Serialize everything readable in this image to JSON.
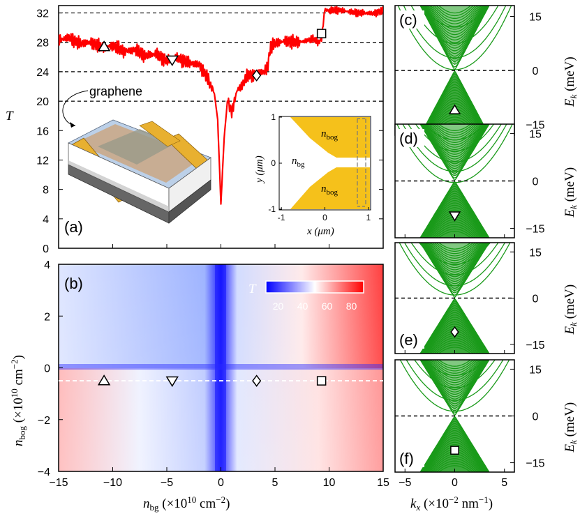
{
  "chart_data": [
    {
      "panel": "(a)",
      "type": "line",
      "ylabel": "T",
      "xlim": [
        -15,
        15
      ],
      "ylim": [
        0,
        33
      ],
      "yticks": [
        "0",
        "4",
        "8",
        "12",
        "16",
        "20",
        "24",
        "28",
        "32"
      ],
      "plateaus": [
        20,
        24,
        28,
        32
      ],
      "series": [
        {
          "name": "T",
          "color": "#ff0000",
          "x": [
            -15,
            -14,
            -13,
            -12,
            -11,
            -10,
            -9,
            -8,
            -7,
            -6,
            -5,
            -4,
            -3,
            -2,
            -1.2,
            -0.6,
            -0.3,
            0,
            0.3,
            0.6,
            1,
            1.5,
            2,
            2.5,
            3,
            3.5,
            4,
            4.3,
            4.6,
            5,
            6,
            7,
            7.5,
            8,
            8.5,
            9,
            9.3,
            9.6,
            10,
            11,
            12,
            13,
            14,
            15
          ],
          "y": [
            28.3,
            28.6,
            27.8,
            28.0,
            27.3,
            27.6,
            26.8,
            27.0,
            26.2,
            26.4,
            25.5,
            25.9,
            25.2,
            25.0,
            23.0,
            21.0,
            17.5,
            6.0,
            15.0,
            20.0,
            18.5,
            21.5,
            22.2,
            23.6,
            23.5,
            23.8,
            24.0,
            24.5,
            27.5,
            27.8,
            28.2,
            28.0,
            28.1,
            28.3,
            28.5,
            28.0,
            28.4,
            32.5,
            32.3,
            32.4,
            32.1,
            32.0,
            31.9,
            32.3
          ]
        }
      ],
      "markers": [
        {
          "shape": "triangle-up",
          "x": -10.8,
          "y": 27.4
        },
        {
          "shape": "triangle-down",
          "x": -4.5,
          "y": 25.6
        },
        {
          "shape": "diamond",
          "x": 3.3,
          "y": 23.5
        },
        {
          "shape": "square",
          "x": 9.3,
          "y": 29.2
        }
      ],
      "annotation": "graphene",
      "inset": {
        "xlabel": "x (μm)",
        "ylabel": "y (μm)",
        "xticks": [
          "-1",
          "0",
          "1"
        ],
        "yticks": [
          "-1",
          "0",
          "1"
        ],
        "labels": {
          "top": "n_bog",
          "middle": "n_bg",
          "bottom": "n_bog"
        }
      }
    },
    {
      "panel": "(b)",
      "type": "heatmap",
      "xlabel": "n_bg (×10^10 cm^-2)",
      "ylabel": "n_bog (×10^10 cm^-2)",
      "xlim": [
        -15,
        15
      ],
      "ylim": [
        -4,
        4
      ],
      "xticks": [
        "-15",
        "-10",
        "-5",
        "0",
        "5",
        "10",
        "15"
      ],
      "yticks": [
        "-4",
        "-2",
        "0",
        "2",
        "4"
      ],
      "colorbar": {
        "label": "T",
        "ticks": [
          "20",
          "40",
          "60",
          "80"
        ],
        "range": [
          10,
          90
        ]
      },
      "cut_line_y": -0.5,
      "markers": [
        {
          "shape": "triangle-up",
          "x": -10.8,
          "y": -0.5
        },
        {
          "shape": "triangle-down",
          "x": -4.5,
          "y": -0.5
        },
        {
          "shape": "diamond",
          "x": 3.3,
          "y": -0.5
        },
        {
          "shape": "square",
          "x": 9.3,
          "y": -0.5
        }
      ]
    },
    {
      "panels": [
        "(c)",
        "(d)",
        "(e)",
        "(f)"
      ],
      "type": "line",
      "description": "band structures",
      "xlabel": "k_x (×10^-2 nm^-1)",
      "ylabel": "E_k (meV)",
      "xlim": [
        -6,
        6
      ],
      "ylim": [
        -18,
        18
      ],
      "xticks": [
        "-5",
        "0",
        "5"
      ],
      "yticks": [
        "15",
        "0",
        "-15"
      ],
      "fermi_levels": [
        0,
        0,
        0,
        0
      ],
      "markers": [
        "triangle-up",
        "triangle-down",
        "diamond",
        "square"
      ]
    }
  ],
  "labels": {
    "a": "(a)",
    "b": "(b)",
    "c": "(c)",
    "d": "(d)",
    "e": "(e)",
    "f": "(f)",
    "graphene": "graphene",
    "T": "T",
    "nbog_inset": "n",
    "nbog_sub": "bog",
    "nbg_inset": "n",
    "nbg_sub": "bg"
  }
}
